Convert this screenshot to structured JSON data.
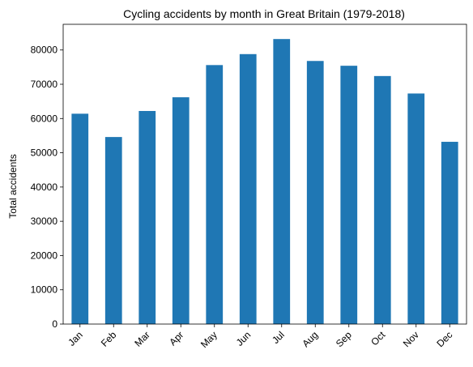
{
  "chart_data": {
    "type": "bar",
    "title": "Cycling accidents by month in Great Britain (1979-2018)",
    "xlabel": "",
    "ylabel": "Total accidents",
    "categories": [
      "Jan",
      "Feb",
      "Mar",
      "Apr",
      "May",
      "Jun",
      "Jul",
      "Aug",
      "Sep",
      "Oct",
      "Nov",
      "Dec"
    ],
    "values": [
      61400,
      54600,
      62200,
      66200,
      75600,
      78800,
      83200,
      76800,
      75400,
      72400,
      67300,
      53200
    ],
    "ylim": [
      0,
      87500
    ],
    "yticks": [
      0,
      10000,
      20000,
      30000,
      40000,
      50000,
      60000,
      70000,
      80000
    ],
    "bar_color": "#1f77b4",
    "grid": false,
    "legend": "none"
  }
}
